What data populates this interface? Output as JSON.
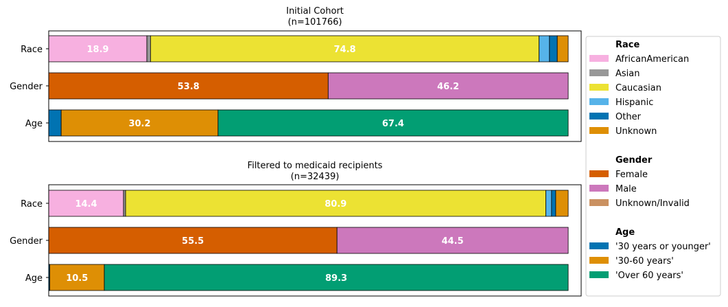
{
  "chart_data": [
    {
      "type": "bar",
      "orientation": "horizontal-stacked",
      "title": "Initial Cohort",
      "subtitle": "(n=101766)",
      "categories": [
        "Race",
        "Gender",
        "Age"
      ],
      "xlim": [
        0,
        100
      ],
      "grid": false,
      "stacks": {
        "Race": [
          {
            "name": "AfricanAmerican",
            "value": 18.9,
            "label": "18.9"
          },
          {
            "name": "Asian",
            "value": 0.7,
            "label": ""
          },
          {
            "name": "Caucasian",
            "value": 74.8,
            "label": "74.8"
          },
          {
            "name": "Hispanic",
            "value": 2.0,
            "label": ""
          },
          {
            "name": "Other",
            "value": 1.5,
            "label": ""
          },
          {
            "name": "Unknown",
            "value": 2.1,
            "label": ""
          }
        ],
        "Gender": [
          {
            "name": "Female",
            "value": 53.8,
            "label": "53.8"
          },
          {
            "name": "Male",
            "value": 46.2,
            "label": "46.2"
          }
        ],
        "Age": [
          {
            "name": "'30 years or younger'",
            "value": 2.4,
            "label": ""
          },
          {
            "name": "'30-60 years'",
            "value": 30.2,
            "label": "30.2"
          },
          {
            "name": "'Over 60 years'",
            "value": 67.4,
            "label": "67.4"
          }
        ]
      }
    },
    {
      "type": "bar",
      "orientation": "horizontal-stacked",
      "title": "Filtered to medicaid recipients",
      "subtitle": "(n=32439)",
      "categories": [
        "Race",
        "Gender",
        "Age"
      ],
      "xlim": [
        0,
        100
      ],
      "grid": false,
      "stacks": {
        "Race": [
          {
            "name": "AfricanAmerican",
            "value": 14.4,
            "label": "14.4"
          },
          {
            "name": "Asian",
            "value": 0.4,
            "label": ""
          },
          {
            "name": "Caucasian",
            "value": 80.9,
            "label": "80.9"
          },
          {
            "name": "Hispanic",
            "value": 1.1,
            "label": ""
          },
          {
            "name": "Other",
            "value": 0.8,
            "label": ""
          },
          {
            "name": "Unknown",
            "value": 2.4,
            "label": ""
          }
        ],
        "Gender": [
          {
            "name": "Female",
            "value": 55.5,
            "label": "55.5"
          },
          {
            "name": "Male",
            "value": 44.5,
            "label": "44.5"
          }
        ],
        "Age": [
          {
            "name": "'30 years or younger'",
            "value": 0.2,
            "label": ""
          },
          {
            "name": "'30-60 years'",
            "value": 10.5,
            "label": "10.5"
          },
          {
            "name": "'Over 60 years'",
            "value": 89.3,
            "label": "89.3"
          }
        ]
      }
    }
  ],
  "legend": {
    "placement": "right",
    "groups": [
      {
        "title": "Race",
        "items": [
          {
            "name": "AfricanAmerican",
            "color": "#f7b0e0"
          },
          {
            "name": "Asian",
            "color": "#989898"
          },
          {
            "name": "Caucasian",
            "color": "#ece233"
          },
          {
            "name": "Hispanic",
            "color": "#56b3e9"
          },
          {
            "name": "Other",
            "color": "#0173b2"
          },
          {
            "name": "Unknown",
            "color": "#de8f05"
          }
        ]
      },
      {
        "title": "Gender",
        "items": [
          {
            "name": "Female",
            "color": "#d55e00"
          },
          {
            "name": "Male",
            "color": "#cc78bc"
          },
          {
            "name": "Unknown/Invalid",
            "color": "#ca9161"
          }
        ]
      },
      {
        "title": "Age",
        "items": [
          {
            "name": "'30 years or younger'",
            "color": "#0173b2"
          },
          {
            "name": "'30-60 years'",
            "color": "#de8f05"
          },
          {
            "name": "'Over 60 years'",
            "color": "#029e73"
          }
        ]
      }
    ]
  }
}
